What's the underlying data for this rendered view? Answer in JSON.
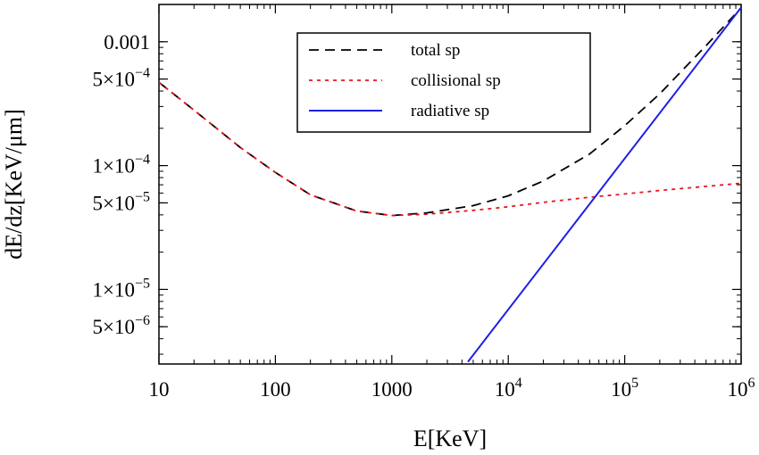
{
  "chart_data": {
    "type": "line",
    "title": "",
    "xlabel": "E[KeV]",
    "ylabel": "dE/dz[KeV/μm]",
    "xscale": "log",
    "yscale": "log",
    "xlim": [
      10,
      1000000
    ],
    "ylim": [
      2.5e-06,
      0.002
    ],
    "grid": false,
    "legend_position": "top-center",
    "x_ticks": [
      {
        "value": 10,
        "mantissa": "10",
        "exponent": ""
      },
      {
        "value": 100,
        "mantissa": "100",
        "exponent": ""
      },
      {
        "value": 1000,
        "mantissa": "1000",
        "exponent": ""
      },
      {
        "value": 10000,
        "mantissa": "10",
        "exponent": "4"
      },
      {
        "value": 100000,
        "mantissa": "10",
        "exponent": "5"
      },
      {
        "value": 1000000,
        "mantissa": "10",
        "exponent": "6"
      }
    ],
    "y_ticks": [
      {
        "value": 5e-06,
        "mantissa": "5×10",
        "exponent": "−6"
      },
      {
        "value": 1e-05,
        "mantissa": "1×10",
        "exponent": "−5"
      },
      {
        "value": 5e-05,
        "mantissa": "5×10",
        "exponent": "−5"
      },
      {
        "value": 0.0001,
        "mantissa": "1×10",
        "exponent": "−4"
      },
      {
        "value": 0.0005,
        "mantissa": "5×10",
        "exponent": "−4"
      },
      {
        "value": 0.001,
        "mantissa": "0.001",
        "exponent": ""
      }
    ],
    "series": [
      {
        "name": "total sp",
        "color": "#000000",
        "style": "dashed",
        "x": [
          10,
          20,
          50,
          100,
          200,
          500,
          1000,
          2000,
          5000,
          10000,
          20000,
          50000,
          100000,
          200000,
          500000,
          1000000
        ],
        "y": [
          0.00047,
          0.00028,
          0.00014,
          8.8e-05,
          5.8e-05,
          4.3e-05,
          3.95e-05,
          4.15e-05,
          4.75e-05,
          5.7e-05,
          7.5e-05,
          0.000124,
          0.00021,
          0.00038,
          0.00093,
          0.00188
        ]
      },
      {
        "name": "collisional sp",
        "color": "#e8141e",
        "style": "dotted",
        "x": [
          10,
          20,
          50,
          100,
          200,
          500,
          1000,
          2000,
          5000,
          10000,
          20000,
          50000,
          100000,
          200000,
          500000,
          1000000
        ],
        "y": [
          0.00047,
          0.00028,
          0.00014,
          8.8e-05,
          5.8e-05,
          4.3e-05,
          3.95e-05,
          4.05e-05,
          4.35e-05,
          4.65e-05,
          5.05e-05,
          5.55e-05,
          5.9e-05,
          6.3e-05,
          6.8e-05,
          7.2e-05
        ]
      },
      {
        "name": "radiative sp",
        "color": "#1f1fe6",
        "style": "solid",
        "x": [
          4500,
          1000000
        ],
        "y": [
          2.6e-06,
          0.00189
        ]
      }
    ]
  }
}
